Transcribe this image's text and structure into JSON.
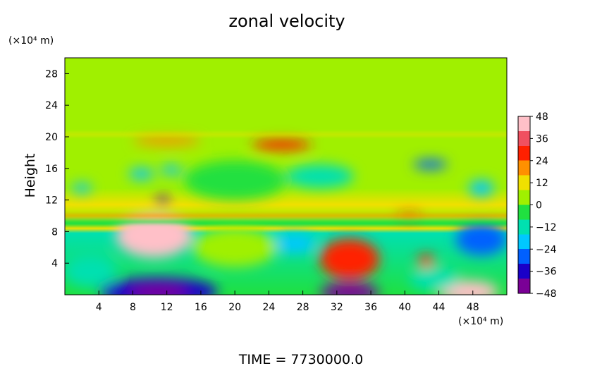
{
  "chart_data": {
    "type": "heatmap",
    "title": "zonal velocity",
    "ylabel": "Height",
    "y_unit": "(×10⁴ m)",
    "x_unit": "(×10⁴ m)",
    "footer": "TIME  =  7730000.0",
    "xlim": [
      0,
      52
    ],
    "ylim": [
      0,
      30
    ],
    "x_ticks": [
      4,
      8,
      12,
      16,
      20,
      24,
      28,
      32,
      36,
      40,
      44,
      48
    ],
    "y_ticks": [
      4,
      8,
      12,
      16,
      20,
      24,
      28
    ],
    "colorbar": {
      "min": -48,
      "max": 48,
      "ticks": [
        48,
        36,
        24,
        12,
        0,
        -12,
        -24,
        -36,
        -48
      ],
      "tick_labels": [
        "48",
        "36",
        "24",
        "12",
        "0",
        "−12",
        "−24",
        "−36",
        "−48"
      ],
      "colors": [
        "#7a0096",
        "#1a00c8",
        "#0060ff",
        "#00c8ff",
        "#00e0b0",
        "#20e040",
        "#a0f000",
        "#f0e000",
        "#ff9000",
        "#ff2000",
        "#f05060",
        "#ffc0c8"
      ]
    },
    "grid": false,
    "features": [
      {
        "x": 10.5,
        "y": 7.5,
        "rx": 4.5,
        "ry": 2.8,
        "value": 40
      },
      {
        "x": 33.5,
        "y": 4.5,
        "rx": 3.5,
        "ry": 2.6,
        "value": 30
      },
      {
        "x": 11,
        "y": 0.4,
        "rx": 7,
        "ry": 1.8,
        "value": -40
      },
      {
        "x": 33.5,
        "y": 0.3,
        "rx": 3.5,
        "ry": 1.2,
        "value": -48
      },
      {
        "x": 47.5,
        "y": 0.4,
        "rx": 3.5,
        "ry": 1.4,
        "value": 44
      },
      {
        "x": 49,
        "y": 7,
        "rx": 3,
        "ry": 2,
        "value": -26
      },
      {
        "x": 27,
        "y": 6.5,
        "rx": 2.5,
        "ry": 1.2,
        "value": -24
      },
      {
        "x": 3,
        "y": 3,
        "rx": 3,
        "ry": 2,
        "value": -14
      },
      {
        "x": 20,
        "y": 6,
        "rx": 5,
        "ry": 2.5,
        "value": 4
      },
      {
        "x": 42.5,
        "y": 4.3,
        "rx": 1,
        "ry": 0.8,
        "value": 28
      },
      {
        "x": 43.5,
        "y": 2,
        "rx": 3,
        "ry": 1.5,
        "value": -12
      },
      {
        "x": 25.5,
        "y": 19,
        "rx": 3.5,
        "ry": 0.7,
        "value": 26
      },
      {
        "x": 12,
        "y": 19.5,
        "rx": 4,
        "ry": 0.6,
        "value": 18
      },
      {
        "x": 43,
        "y": 16.5,
        "rx": 2,
        "ry": 0.6,
        "value": -26
      },
      {
        "x": 11.5,
        "y": 12,
        "rx": 0.8,
        "ry": 0.5,
        "value": -36
      },
      {
        "x": 9,
        "y": 15.3,
        "rx": 1.5,
        "ry": 0.7,
        "value": -22
      },
      {
        "x": 12.5,
        "y": 15.8,
        "rx": 1.2,
        "ry": 0.6,
        "value": -22
      },
      {
        "x": 30,
        "y": 15,
        "rx": 4,
        "ry": 1.5,
        "value": -16
      },
      {
        "x": 2,
        "y": 13.5,
        "rx": 1.2,
        "ry": 0.6,
        "value": -24
      },
      {
        "x": 49,
        "y": 13.5,
        "rx": 1.5,
        "ry": 1,
        "value": -22
      },
      {
        "x": 20,
        "y": 14.5,
        "rx": 6,
        "ry": 2.5,
        "value": -8
      },
      {
        "x": 40.5,
        "y": 10,
        "rx": 1.5,
        "ry": 0.3,
        "value": 24
      }
    ],
    "bands": [
      {
        "y": 10,
        "height": 0.35,
        "value": 20
      },
      {
        "y": 9.3,
        "height": 0.4,
        "value": -8
      },
      {
        "y": 20.3,
        "height": 0.25,
        "value": 14
      },
      {
        "y": 21,
        "height": 0.25,
        "value": 6
      }
    ]
  }
}
